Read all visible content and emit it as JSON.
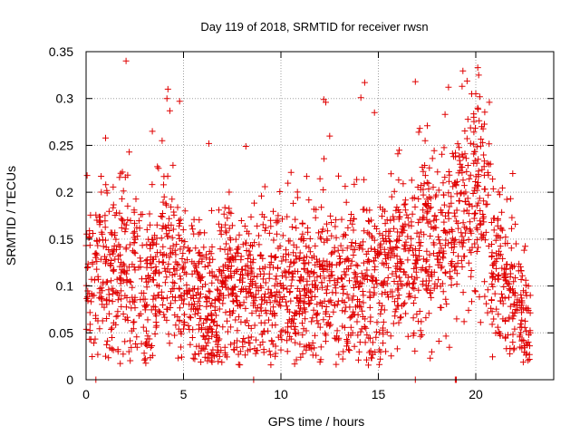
{
  "chart_data": {
    "type": "scatter",
    "title": "Day 119 of 2018, SRMTID for receiver rwsn",
    "xlabel": "GPS time / hours",
    "ylabel": "SRMTID / TECUs",
    "xlim": [
      0,
      24
    ],
    "ylim": [
      0,
      0.35
    ],
    "xticks": [
      0,
      5,
      10,
      15,
      20
    ],
    "yticks": [
      0,
      0.05,
      0.1,
      0.15,
      0.2,
      0.25,
      0.3,
      0.35
    ],
    "xtick_labels": [
      "0",
      "5",
      "10",
      "15",
      "20"
    ],
    "ytick_labels": [
      "0",
      "0.05",
      "0.1",
      "0.15",
      "0.2",
      "0.25",
      "0.3",
      "0.35"
    ],
    "grid": true,
    "marker": "+",
    "color": "#e00000",
    "envelope": {
      "description": "approximate local median SRMTID (TECU) by hour; used to generate the dense point cloud",
      "hours": [
        0,
        1,
        2,
        3,
        4,
        5,
        6,
        7,
        8,
        9,
        10,
        11,
        12,
        13,
        14,
        15,
        16,
        17,
        18,
        19,
        20,
        21,
        22,
        22.8
      ],
      "median": [
        0.11,
        0.12,
        0.12,
        0.09,
        0.13,
        0.1,
        0.07,
        0.1,
        0.09,
        0.09,
        0.11,
        0.1,
        0.12,
        0.09,
        0.11,
        0.1,
        0.13,
        0.15,
        0.15,
        0.17,
        0.21,
        0.11,
        0.09,
        0.06
      ]
    },
    "points": [
      [
        2.05,
        0.34
      ],
      [
        4.2,
        0.31
      ],
      [
        4.15,
        0.3
      ],
      [
        4.8,
        0.297
      ],
      [
        12.2,
        0.299
      ],
      [
        12.3,
        0.296
      ],
      [
        14.1,
        0.301
      ],
      [
        14.3,
        0.317
      ],
      [
        14.8,
        0.285
      ],
      [
        16.9,
        0.318
      ],
      [
        18.6,
        0.312
      ],
      [
        19.3,
        0.313
      ],
      [
        20.1,
        0.333
      ],
      [
        20.15,
        0.325
      ],
      [
        20.0,
        0.305
      ],
      [
        20.7,
        0.296
      ],
      [
        4.3,
        0.287
      ],
      [
        3.4,
        0.265
      ],
      [
        1.0,
        0.258
      ],
      [
        6.3,
        0.252
      ],
      [
        8.2,
        0.249
      ],
      [
        3.9,
        0.255
      ],
      [
        12.5,
        0.26
      ],
      [
        16.0,
        0.241
      ],
      [
        17.4,
        0.255
      ],
      [
        19.9,
        0.28
      ],
      [
        20.3,
        0.27
      ],
      [
        21.9,
        0.22
      ],
      [
        0.5,
        0.0
      ],
      [
        8.6,
        0.0
      ],
      [
        16.9,
        0.0
      ],
      [
        18.95,
        0.0
      ],
      [
        19.0,
        0.0
      ],
      [
        0.6,
        0.027
      ],
      [
        1.0,
        0.025
      ],
      [
        2.2,
        0.03
      ],
      [
        5.5,
        0.023
      ],
      [
        5.6,
        0.027
      ],
      [
        11.2,
        0.035
      ],
      [
        13.2,
        0.03
      ],
      [
        17.2,
        0.062
      ],
      [
        19.4,
        0.062
      ],
      [
        21.9,
        0.04
      ],
      [
        22.6,
        0.028
      ],
      [
        22.7,
        0.04
      ],
      [
        22.8,
        0.05
      ],
      [
        22.7,
        0.1
      ],
      [
        22.8,
        0.09
      ]
    ]
  }
}
